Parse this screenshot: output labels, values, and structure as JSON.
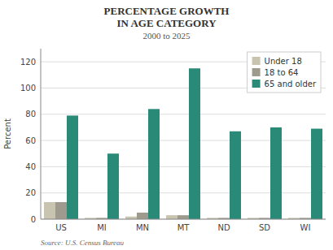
{
  "chart_data": {
    "type": "bar",
    "title": [
      "PERCENTAGE GROWTH",
      "IN AGE CATEGORY"
    ],
    "subtitle": "2000 to 2025",
    "ylabel": "Percent",
    "annotations": [
      "Source: U.S. Census Bureau"
    ],
    "categories": [
      "US",
      "MI",
      "MN",
      "MT",
      "ND",
      "SD",
      "WI"
    ],
    "series": [
      {
        "name": "Under 18",
        "color": "#c8c4b0",
        "values": [
          13,
          1,
          2,
          3,
          1,
          1,
          1
        ]
      },
      {
        "name": "18 to 64",
        "color": "#9e9b8e",
        "values": [
          13,
          1,
          5,
          3,
          1,
          1,
          1
        ]
      },
      {
        "name": "65 and older",
        "color": "#2a8a78",
        "values": [
          79,
          50,
          84,
          115,
          67,
          70,
          69
        ]
      }
    ],
    "ylim": [
      0,
      130
    ],
    "yticks": [
      0,
      20,
      40,
      60,
      80,
      100,
      120
    ],
    "grid": true,
    "legend": "upper-right"
  }
}
